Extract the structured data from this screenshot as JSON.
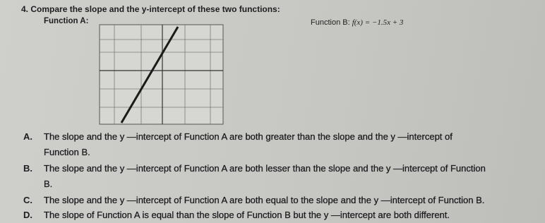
{
  "question": {
    "number": "4.",
    "text": "Compare the slope and the y-intercept of these two functions:"
  },
  "function_a": {
    "label": "Function A:"
  },
  "function_b": {
    "label": "Function B:",
    "formula": "f(x) = −1.5x + 3"
  },
  "options": [
    {
      "letter": "A.",
      "lines": [
        "The slope and the y —intercept of Function A are both greater than the slope and the y —intercept of",
        "Function B."
      ]
    },
    {
      "letter": "B.",
      "lines": [
        "The slope and the y —intercept of Function A are both lesser than the slope and the y —intercept of Function",
        "B."
      ]
    },
    {
      "letter": "C.",
      "lines": [
        "The slope and the y —intercept of Function A are both equal to the slope and the y —intercept of Function B."
      ]
    },
    {
      "letter": "D.",
      "lines": [
        "The slope of Function A is equal than the slope of Function B but the y —intercept are both different."
      ]
    }
  ]
}
